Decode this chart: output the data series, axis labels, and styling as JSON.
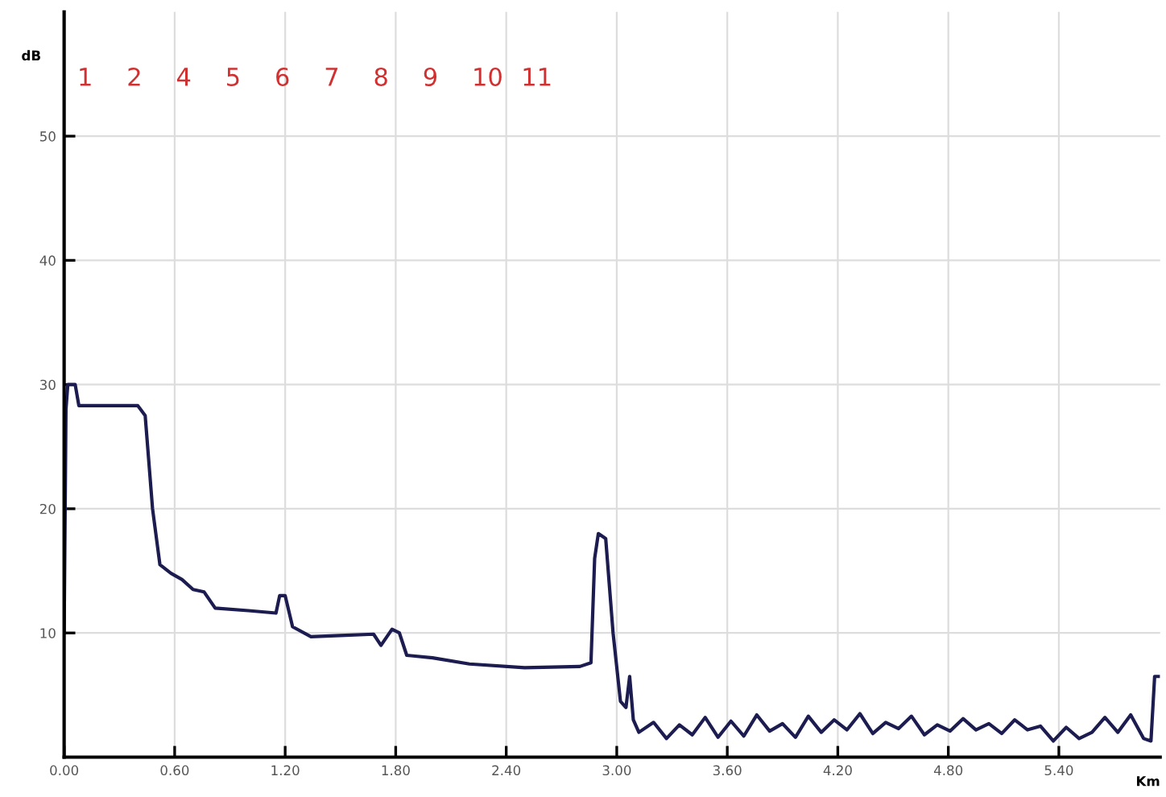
{
  "chart_data": {
    "type": "line",
    "ylabel": "dB",
    "xlabel": "Km",
    "xlim": [
      0,
      5.95
    ],
    "ylim": [
      0,
      60
    ],
    "xticks": [
      {
        "value": 0,
        "label": "0.00"
      },
      {
        "value": 0.6,
        "label": "0.60"
      },
      {
        "value": 1.2,
        "label": "1.20"
      },
      {
        "value": 1.8,
        "label": "1.80"
      },
      {
        "value": 2.4,
        "label": "2.40"
      },
      {
        "value": 3.0,
        "label": "3.00"
      },
      {
        "value": 3.6,
        "label": "3.60"
      },
      {
        "value": 4.2,
        "label": "4.20"
      },
      {
        "value": 4.8,
        "label": "4.80"
      },
      {
        "value": 5.4,
        "label": "5.40"
      }
    ],
    "yticks": [
      10,
      20,
      30,
      40,
      50
    ],
    "grid": true,
    "legend": false,
    "marker": "none",
    "line_style": "solid",
    "series": [
      {
        "color": "#1c1c50",
        "x": [
          0.0,
          0.01,
          0.02,
          0.06,
          0.08,
          0.4,
          0.44,
          0.48,
          0.52,
          0.58,
          0.64,
          0.7,
          0.76,
          0.82,
          1.0,
          1.15,
          1.17,
          1.2,
          1.24,
          1.34,
          1.5,
          1.68,
          1.72,
          1.78,
          1.82,
          1.86,
          2.0,
          2.2,
          2.5,
          2.8,
          2.86,
          2.88,
          2.9,
          2.94,
          2.98,
          3.02,
          3.05,
          3.07,
          3.09,
          3.12,
          3.2,
          3.27,
          3.34,
          3.41,
          3.48,
          3.55,
          3.62,
          3.69,
          3.76,
          3.83,
          3.9,
          3.97,
          4.04,
          4.11,
          4.18,
          4.25,
          4.32,
          4.39,
          4.46,
          4.53,
          4.6,
          4.67,
          4.74,
          4.81,
          4.88,
          4.95,
          5.02,
          5.09,
          5.16,
          5.23,
          5.3,
          5.37,
          5.44,
          5.51,
          5.58,
          5.65,
          5.72,
          5.79,
          5.86,
          5.9,
          5.92,
          5.94
        ],
        "values": [
          10,
          28,
          30,
          30,
          28.3,
          28.3,
          27.5,
          20,
          15.5,
          14.8,
          14.3,
          13.5,
          13.3,
          12,
          11.8,
          11.6,
          13,
          13,
          10.5,
          9.7,
          9.8,
          9.9,
          9,
          10.3,
          10,
          8.2,
          8,
          7.5,
          7.2,
          7.3,
          7.6,
          16,
          18,
          17.6,
          10,
          4.5,
          4,
          6.5,
          3,
          2,
          2.8,
          1.5,
          2.6,
          1.8,
          3.2,
          1.6,
          2.9,
          1.7,
          3.4,
          2.1,
          2.7,
          1.6,
          3.3,
          2.0,
          3.0,
          2.2,
          3.5,
          1.9,
          2.8,
          2.3,
          3.3,
          1.8,
          2.6,
          2.1,
          3.1,
          2.2,
          2.7,
          1.9,
          3.0,
          2.2,
          2.5,
          1.3,
          2.4,
          1.5,
          2.0,
          3.2,
          2.0,
          3.4,
          1.5,
          1.3,
          6.5,
          6.5
        ]
      }
    ],
    "annotations": [
      "1",
      "2",
      "4",
      "5",
      "6",
      "7",
      "8",
      "9",
      "10",
      "11"
    ]
  }
}
